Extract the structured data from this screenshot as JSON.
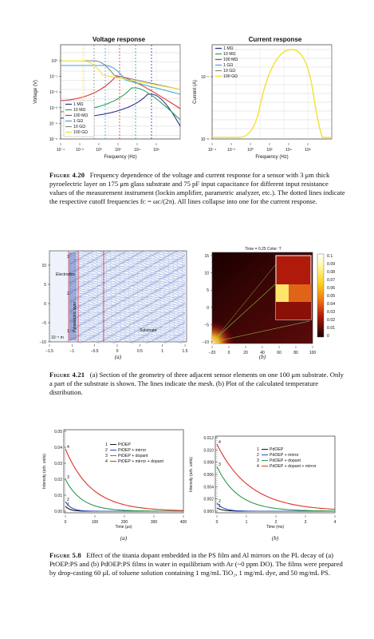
{
  "fig420": {
    "voltage": {
      "title": "Voltage response",
      "xlabel": "Frequency (Hz)",
      "ylabel": "Voltage (V)",
      "xticks": [
        "10⁻⁴",
        "10⁻²",
        "10⁰",
        "10²",
        "10⁴",
        "10⁶"
      ],
      "yticks": [
        "10⁰",
        "10⁻¹",
        "10⁻²",
        "10⁻³",
        "10⁻⁴",
        "10⁻⁵"
      ],
      "legend": [
        "1 MΩ",
        "10 MΩ",
        "100 MΩ",
        "1 GΩ",
        "10 GΩ",
        "100 GΩ"
      ]
    },
    "current": {
      "title": "Current response",
      "xlabel": "Frequency (Hz)",
      "ylabel": "Current (A)",
      "xticks": [
        "10⁻⁴",
        "10⁻²",
        "10⁰",
        "10²",
        "10⁴",
        "10⁶"
      ],
      "yticks": [
        "10⁻⁷",
        "10⁻⁸"
      ],
      "legend": [
        "1 MΩ",
        "10 MΩ",
        "100 MΩ",
        "1 GΩ",
        "10 GΩ",
        "100 GΩ"
      ]
    },
    "colors": [
      "#2b2f8f",
      "#2ca05a",
      "#e0302a",
      "#3aa6d8",
      "#8a8a8a",
      "#f2e22c"
    ],
    "caption_label": "Figure 4.20",
    "caption_text": "Frequency dependence of the voltage and current response for a sensor with 3 μm thick pyroelectric layer on 175 μm glass substrate and 75 pF input capacitance for different input resistance values of the measurement instrument (lockin amplifier, parametric analyzer, etc.). The dotted lines indicate the respective cutoff frequencies fᴄ = ωᴄ/(2π). All lines collapse into one for the current response."
  },
  "fig421": {
    "mesh": {
      "labels": {
        "electrodes": "Electrodes",
        "pyro": "Pyroelectric layer",
        "substrate": "Substrate",
        "scale": "10⁻⁵ m",
        "n3": "3",
        "n2": "2",
        "n1": "1"
      },
      "xticks": [
        "−1.5",
        "−1",
        "−0.5",
        "0",
        "0.5",
        "1",
        "1.5"
      ],
      "yticks": [
        "10",
        "5",
        "0",
        "−5",
        "−10"
      ],
      "sublabel": "(a)"
    },
    "heat": {
      "title": "Time = 0.25 Color: T",
      "xticks": [
        "−20",
        "0",
        "20",
        "40",
        "60",
        "80",
        "100"
      ],
      "yticks": [
        "15",
        "10",
        "5",
        "0",
        "−5",
        "−10"
      ],
      "cbar": [
        "0.1",
        "0.09",
        "0.08",
        "0.07",
        "0.06",
        "0.05",
        "0.04",
        "0.03",
        "0.02",
        "0.01",
        "0"
      ],
      "sublabel": "(b)"
    },
    "caption_label": "Figure 4.21",
    "caption_text": "(a) Section of the geometry of three adjacent sensor elements on one 100 μm substrate. Only a part of the substrate is shown. The lines indicate the mesh. (b) Plot of the calculated temperature distribution."
  },
  "fig58": {
    "left": {
      "ylabel": "Intensity (arb. units)",
      "xlabel": "Time (μs)",
      "xticks": [
        "0",
        "100",
        "200",
        "300",
        "400"
      ],
      "yticks": [
        "0.05",
        "0.04",
        "0.03",
        "0.02",
        "0.01",
        "0.00"
      ],
      "legend": [
        {
          "num": "1",
          "text": "PtOEP"
        },
        {
          "num": "2",
          "text": "PtOEP + mirror"
        },
        {
          "num": "3",
          "text": "PtOEP + dopant"
        },
        {
          "num": "4",
          "text": "PtOEP + mirror + dopant"
        }
      ],
      "sublabel": "(a)"
    },
    "right": {
      "ylabel": "Intensity (arb. units)",
      "xlabel": "Time (ms)",
      "xticks": [
        "0",
        "1",
        "2",
        "3",
        "4"
      ],
      "yticks": [
        "0.012",
        "0.010",
        "0.008",
        "0.006",
        "0.004",
        "0.002",
        "0.000"
      ],
      "legend": [
        {
          "num": "1",
          "text": "PdOEP"
        },
        {
          "num": "2",
          "text": "PdOEP + mirror"
        },
        {
          "num": "3",
          "text": "PdOEP + dopant"
        },
        {
          "num": "4",
          "text": "PdOEP + dopant + mirror"
        }
      ],
      "sublabel": "(b)"
    },
    "colors": [
      "#1a1a1a",
      "#2b4fbf",
      "#2a9a4a",
      "#e0302a"
    ],
    "caption_label": "Figure 5.8",
    "caption_text": "Effect of the titania dopant embedded in the PS film and Al mirrors on the PL decay of (a) PtOEP:PS and (b) PdOEP:PS films in water in equilibrium with Ar (~0 ppm DO). The films were prepared by drop-casting 60 μL of toluene solution containing 1 mg/mL TiO₂, 1 mg/mL dye, and 50 mg/mL PS."
  }
}
